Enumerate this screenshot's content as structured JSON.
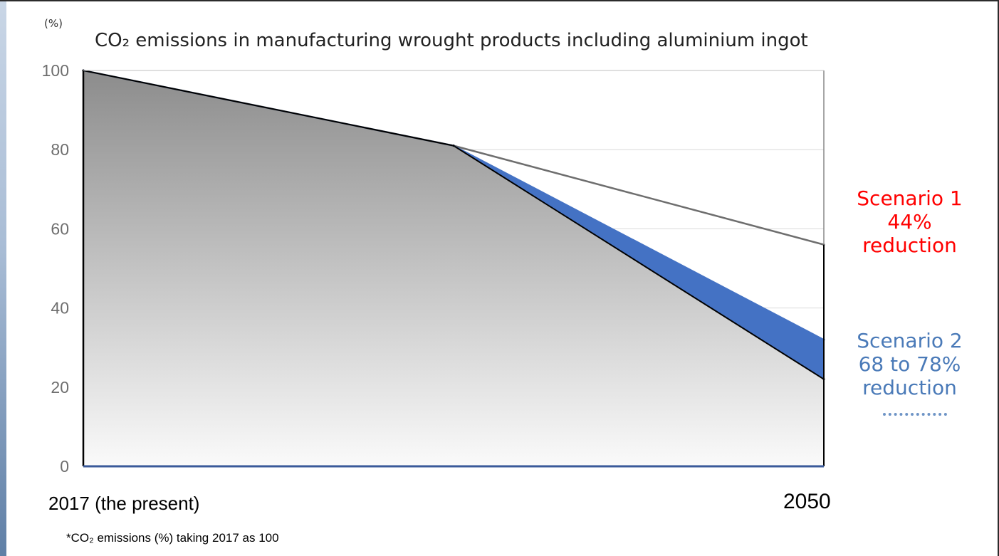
{
  "chart_data": {
    "type": "area",
    "title": "CO₂ emissions in manufacturing wrought products including aluminium ingot",
    "unit_label": "(%)",
    "xlabel": "",
    "ylabel": "",
    "x_start_label": "2017 (the present)",
    "x_end_label": "2050",
    "x_range": [
      2017,
      2050
    ],
    "ylim": [
      0,
      100
    ],
    "y_ticks": [
      0,
      20,
      40,
      60,
      80,
      100
    ],
    "grid": true,
    "series": [
      {
        "name": "Scenario 1",
        "x": [
          2017,
          2033.5,
          2050
        ],
        "values": [
          100,
          81,
          56
        ],
        "color": "#6e6e6e"
      },
      {
        "name": "Scenario 2 (upper)",
        "x": [
          2017,
          2033.5,
          2050
        ],
        "values": [
          100,
          81,
          32
        ],
        "color": "#4472c4"
      },
      {
        "name": "Scenario 2 (lower)",
        "x": [
          2017,
          2033.5,
          2050
        ],
        "values": [
          100,
          81,
          22
        ],
        "color": "#000000"
      }
    ],
    "annotations": {
      "scenario1": [
        "Scenario 1",
        "44%",
        "reduction"
      ],
      "scenario2": [
        "Scenario 2",
        "68 to 78%",
        "reduction"
      ]
    },
    "footnote": "*CO₂ emissions (%) taking 2017 as 100",
    "colors": {
      "scenario1_text": "#ff0000",
      "scenario2_text": "#4a7ab8",
      "band_fill": "#4472c4",
      "area_dark": "#8c8c8c",
      "area_light": "#fafafa",
      "axis": "#3a5a9a",
      "grid": "#d9d9d9"
    }
  }
}
